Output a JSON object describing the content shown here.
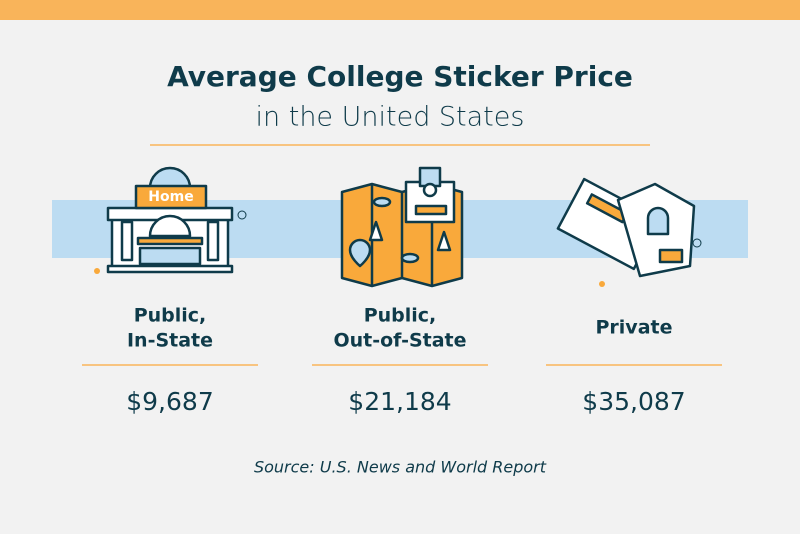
{
  "header": {
    "title": "Average College Sticker Price",
    "subtitle": "in the United States"
  },
  "items": [
    {
      "label": [
        "Public,",
        "In-State"
      ],
      "price": "$9,687",
      "icon_text": "Home"
    },
    {
      "label": [
        "Public,",
        "Out-of-State"
      ],
      "price": "$21,184"
    },
    {
      "label": [
        "Private"
      ],
      "price": "$35,087"
    }
  ],
  "source": "Source: U.S. News and World Report"
}
